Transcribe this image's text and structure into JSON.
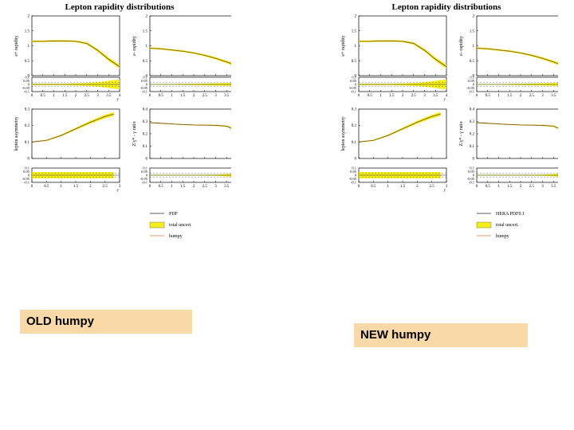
{
  "colors": {
    "band": "#f5ee1a",
    "central": "#2b2b2b",
    "humpy": "#e07830",
    "frame": "#000000"
  },
  "figures": [
    {
      "title": "Lepton rapidity distributions",
      "legend": [
        "PDF",
        "total uncert.",
        "humpy"
      ],
      "caption": "OLD humpy"
    },
    {
      "title": "Lepton rapidity distributions",
      "legend": [
        "HERA PDF0.1",
        "total uncert.",
        "humpy"
      ],
      "caption": "NEW humpy"
    }
  ],
  "chart_data": [
    {
      "type": "line",
      "title": "",
      "xlabel": "y",
      "ylabel": "e+ rapidity",
      "xlim": [
        0,
        4
      ],
      "ylim": [
        0,
        2
      ],
      "xticks": [
        "0",
        "0.5",
        "1",
        "1.5",
        "2",
        "2.5",
        "3",
        "3.5",
        "4"
      ],
      "yticks": [
        "0",
        "0.5",
        "1",
        "1.5",
        "2"
      ],
      "series": [
        {
          "x": [
            0,
            0.5,
            1,
            1.5,
            2,
            2.5,
            3,
            3.5,
            4
          ],
          "values": [
            1.15,
            1.15,
            1.16,
            1.16,
            1.15,
            1.08,
            0.85,
            0.55,
            0.3
          ],
          "uncertainty": [
            0.03,
            0.03,
            0.03,
            0.03,
            0.03,
            0.04,
            0.05,
            0.06,
            0.07
          ]
        }
      ],
      "ratio_panel": {
        "yticks": [
          "0.1",
          "0.05",
          "0",
          "-0.05",
          "-0.1"
        ],
        "band_halfwidth": [
          0.01,
          0.01,
          0.01,
          0.01,
          0.015,
          0.02,
          0.03,
          0.05,
          0.07
        ]
      }
    },
    {
      "type": "line",
      "title": "",
      "xlabel": "y",
      "ylabel": "e- rapidity",
      "xlim": [
        0,
        4
      ],
      "ylim": [
        0,
        2
      ],
      "xticks": [
        "0",
        "0.5",
        "1",
        "1.5",
        "2",
        "2.5",
        "3",
        "3.5",
        "4"
      ],
      "yticks": [
        "0",
        "0.5",
        "1",
        "1.5",
        "2"
      ],
      "series": [
        {
          "x": [
            0,
            0.5,
            1,
            1.5,
            2,
            2.5,
            3,
            3.5,
            4
          ],
          "values": [
            0.92,
            0.9,
            0.86,
            0.82,
            0.76,
            0.68,
            0.58,
            0.46,
            0.32
          ],
          "uncertainty": [
            0.03,
            0.03,
            0.03,
            0.03,
            0.03,
            0.035,
            0.04,
            0.045,
            0.05
          ]
        }
      ],
      "ratio_panel": {
        "yticks": [
          "0.1",
          "0.05",
          "0",
          "-0.05",
          "-0.1"
        ],
        "band_halfwidth": [
          0.005,
          0.005,
          0.006,
          0.008,
          0.01,
          0.013,
          0.016,
          0.02,
          0.025
        ]
      }
    },
    {
      "type": "line",
      "title": "",
      "xlabel": "y",
      "ylabel": "lepton asymmetry",
      "xlim": [
        0,
        3
      ],
      "ylim": [
        0,
        0.3
      ],
      "xticks": [
        "0",
        "0.5",
        "1",
        "1.5",
        "2",
        "2.5",
        "3"
      ],
      "yticks": [
        "0",
        "0.1",
        "0.2",
        "0.3"
      ],
      "series": [
        {
          "x": [
            0,
            0.5,
            1,
            1.5,
            2,
            2.5,
            2.8
          ],
          "values": [
            0.1,
            0.11,
            0.14,
            0.18,
            0.22,
            0.255,
            0.27
          ],
          "uncertainty": [
            0.003,
            0.004,
            0.005,
            0.007,
            0.009,
            0.011,
            0.012
          ]
        }
      ],
      "ratio_panel": {
        "yticks": [
          "0.1",
          "0.05",
          "0",
          "-0.05",
          "-0.1"
        ],
        "band_halfwidth": [
          0.045,
          0.045,
          0.045,
          0.045,
          0.045,
          0.045,
          0.045
        ]
      }
    },
    {
      "type": "line",
      "title": "",
      "xlabel": "y",
      "ylabel": "Z/γ* - γ ratio",
      "xlim": [
        0,
        4
      ],
      "ylim": [
        0,
        0.4
      ],
      "xticks": [
        "0",
        "0.5",
        "1",
        "1.5",
        "2",
        "2.5",
        "3",
        "3.5",
        "4"
      ],
      "yticks": [
        "0",
        "0.1",
        "0.2",
        "0.3",
        "0.4"
      ],
      "series": [
        {
          "x": [
            0,
            0.5,
            1,
            1.5,
            2,
            2.5,
            3,
            3.5,
            3.8,
            4
          ],
          "values": [
            0.29,
            0.285,
            0.28,
            0.275,
            0.272,
            0.27,
            0.268,
            0.262,
            0.24,
            0.17
          ],
          "uncertainty": [
            0.004,
            0.004,
            0.004,
            0.004,
            0.004,
            0.004,
            0.005,
            0.006,
            0.008,
            0.01
          ]
        }
      ],
      "ratio_panel": {
        "yticks": [
          "0.1",
          "0.05",
          "0",
          "-0.05",
          "-0.1"
        ],
        "band_halfwidth": [
          0.005,
          0.005,
          0.005,
          0.005,
          0.006,
          0.007,
          0.008,
          0.015,
          0.03,
          0.04
        ]
      }
    }
  ]
}
